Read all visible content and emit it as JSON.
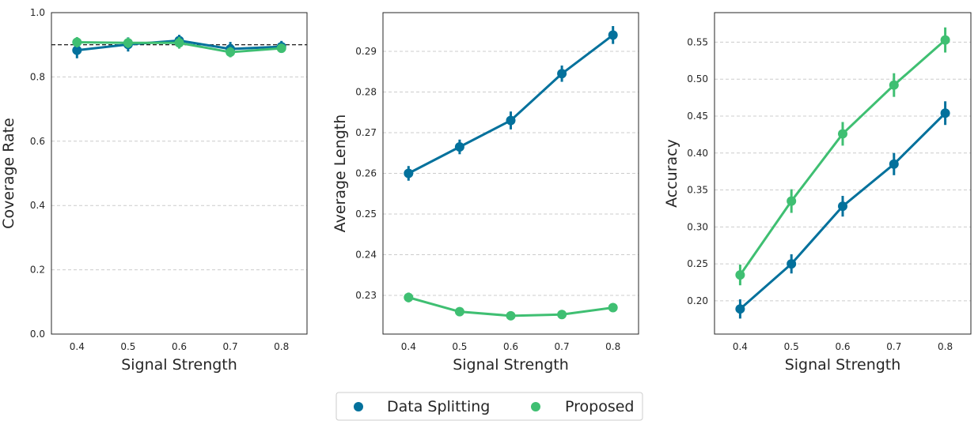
{
  "colors": {
    "data_splitting": "#03719c",
    "proposed": "#3fbf72",
    "grid": "#cccccc",
    "frame": "#262626",
    "reference_line": "#000000"
  },
  "legend": {
    "placement": "bottom-center",
    "entries": [
      "Data Splitting",
      "Proposed"
    ]
  },
  "chart_data": [
    {
      "type": "line",
      "xlabel": "Signal Strength",
      "ylabel": "Coverage Rate",
      "categories": [
        "0.4",
        "0.5",
        "0.6",
        "0.7",
        "0.8"
      ],
      "ylim": [
        0.0,
        1.0
      ],
      "yticks": [
        0.0,
        0.2,
        0.4,
        0.6,
        0.8,
        1.0
      ],
      "ytick_labels": [
        "0.0",
        "0.2",
        "0.4",
        "0.6",
        "0.8",
        "1.0"
      ],
      "reference_line": 0.9,
      "grid": "y-dashed",
      "series": [
        {
          "name": "Data Splitting",
          "values": [
            0.883,
            0.901,
            0.913,
            0.887,
            0.894
          ],
          "err": [
            0.025,
            0.022,
            0.018,
            0.022,
            0.018
          ]
        },
        {
          "name": "Proposed",
          "values": [
            0.908,
            0.906,
            0.906,
            0.877,
            0.889
          ],
          "err": [
            0.016,
            0.016,
            0.018,
            0.016,
            0.014
          ]
        }
      ]
    },
    {
      "type": "line",
      "xlabel": "Signal Strength",
      "ylabel": "Average Length",
      "categories": [
        "0.4",
        "0.5",
        "0.6",
        "0.7",
        "0.8"
      ],
      "ylim": [
        0.2205,
        0.2995
      ],
      "yticks": [
        0.23,
        0.24,
        0.25,
        0.26,
        0.27,
        0.28,
        0.29
      ],
      "ytick_labels": [
        "0.23",
        "0.24",
        "0.25",
        "0.26",
        "0.27",
        "0.28",
        "0.29"
      ],
      "grid": "y-dashed",
      "series": [
        {
          "name": "Data Splitting",
          "values": [
            0.26,
            0.2665,
            0.273,
            0.2845,
            0.294
          ],
          "err": [
            0.0018,
            0.0018,
            0.0022,
            0.002,
            0.0022
          ]
        },
        {
          "name": "Proposed",
          "values": [
            0.2295,
            0.226,
            0.225,
            0.2253,
            0.227
          ],
          "err": [
            0.0012,
            0.001,
            0.0008,
            0.0008,
            0.0008
          ]
        }
      ]
    },
    {
      "type": "line",
      "xlabel": "Signal Strength",
      "ylabel": "Accuracy",
      "categories": [
        "0.4",
        "0.5",
        "0.6",
        "0.7",
        "0.8"
      ],
      "ylim": [
        0.155,
        0.59
      ],
      "yticks": [
        0.2,
        0.25,
        0.3,
        0.35,
        0.4,
        0.45,
        0.5,
        0.55
      ],
      "ytick_labels": [
        "0.20",
        "0.25",
        "0.30",
        "0.35",
        "0.40",
        "0.45",
        "0.50",
        "0.55"
      ],
      "grid": "y-dashed",
      "series": [
        {
          "name": "Data Splitting",
          "values": [
            0.189,
            0.25,
            0.328,
            0.385,
            0.454
          ],
          "err": [
            0.013,
            0.013,
            0.014,
            0.015,
            0.016
          ]
        },
        {
          "name": "Proposed",
          "values": [
            0.235,
            0.335,
            0.426,
            0.492,
            0.553
          ],
          "err": [
            0.014,
            0.016,
            0.016,
            0.016,
            0.017
          ]
        }
      ]
    }
  ]
}
